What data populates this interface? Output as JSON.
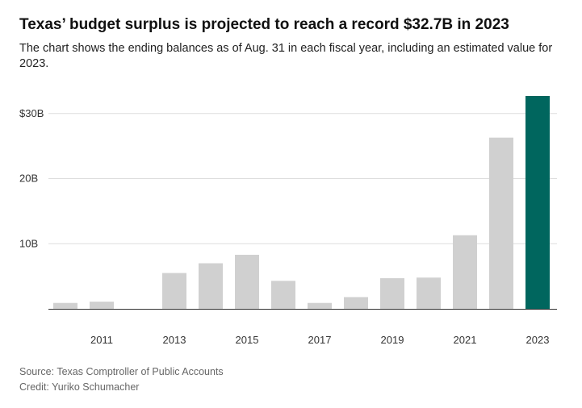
{
  "header": {
    "title": "Texas’ budget surplus is projected to reach a record $32.7B in 2023",
    "subtitle": "The chart shows the ending balances as of Aug. 31 in each fiscal year, including an estimated value for 2023."
  },
  "footer": {
    "source": "Source: Texas Comptroller of Public Accounts",
    "credit": "Credit: Yuriko Schumacher"
  },
  "colors": {
    "bar": "#d0d0d0",
    "highlight": "#00665e",
    "grid": "#dddddd",
    "axis": "#333333"
  },
  "chart_data": {
    "type": "bar",
    "categories": [
      "2010",
      "2011",
      "2012",
      "2013",
      "2014",
      "2015",
      "2016",
      "2017",
      "2018",
      "2019",
      "2020",
      "2021",
      "2022",
      "2023"
    ],
    "values": [
      0.9,
      1.1,
      0,
      5.5,
      7.0,
      8.3,
      4.3,
      0.9,
      1.8,
      4.7,
      4.8,
      11.3,
      26.3,
      32.7
    ],
    "highlight_category": "2023",
    "x_tick_labels": [
      "2011",
      "2013",
      "2015",
      "2017",
      "2019",
      "2021",
      "2023"
    ],
    "y_ticks": [
      10,
      20,
      30
    ],
    "y_tick_labels": [
      "10B",
      "20B",
      "$30B"
    ],
    "ylim": [
      0,
      32.7
    ],
    "grid": true,
    "legend": "none"
  }
}
